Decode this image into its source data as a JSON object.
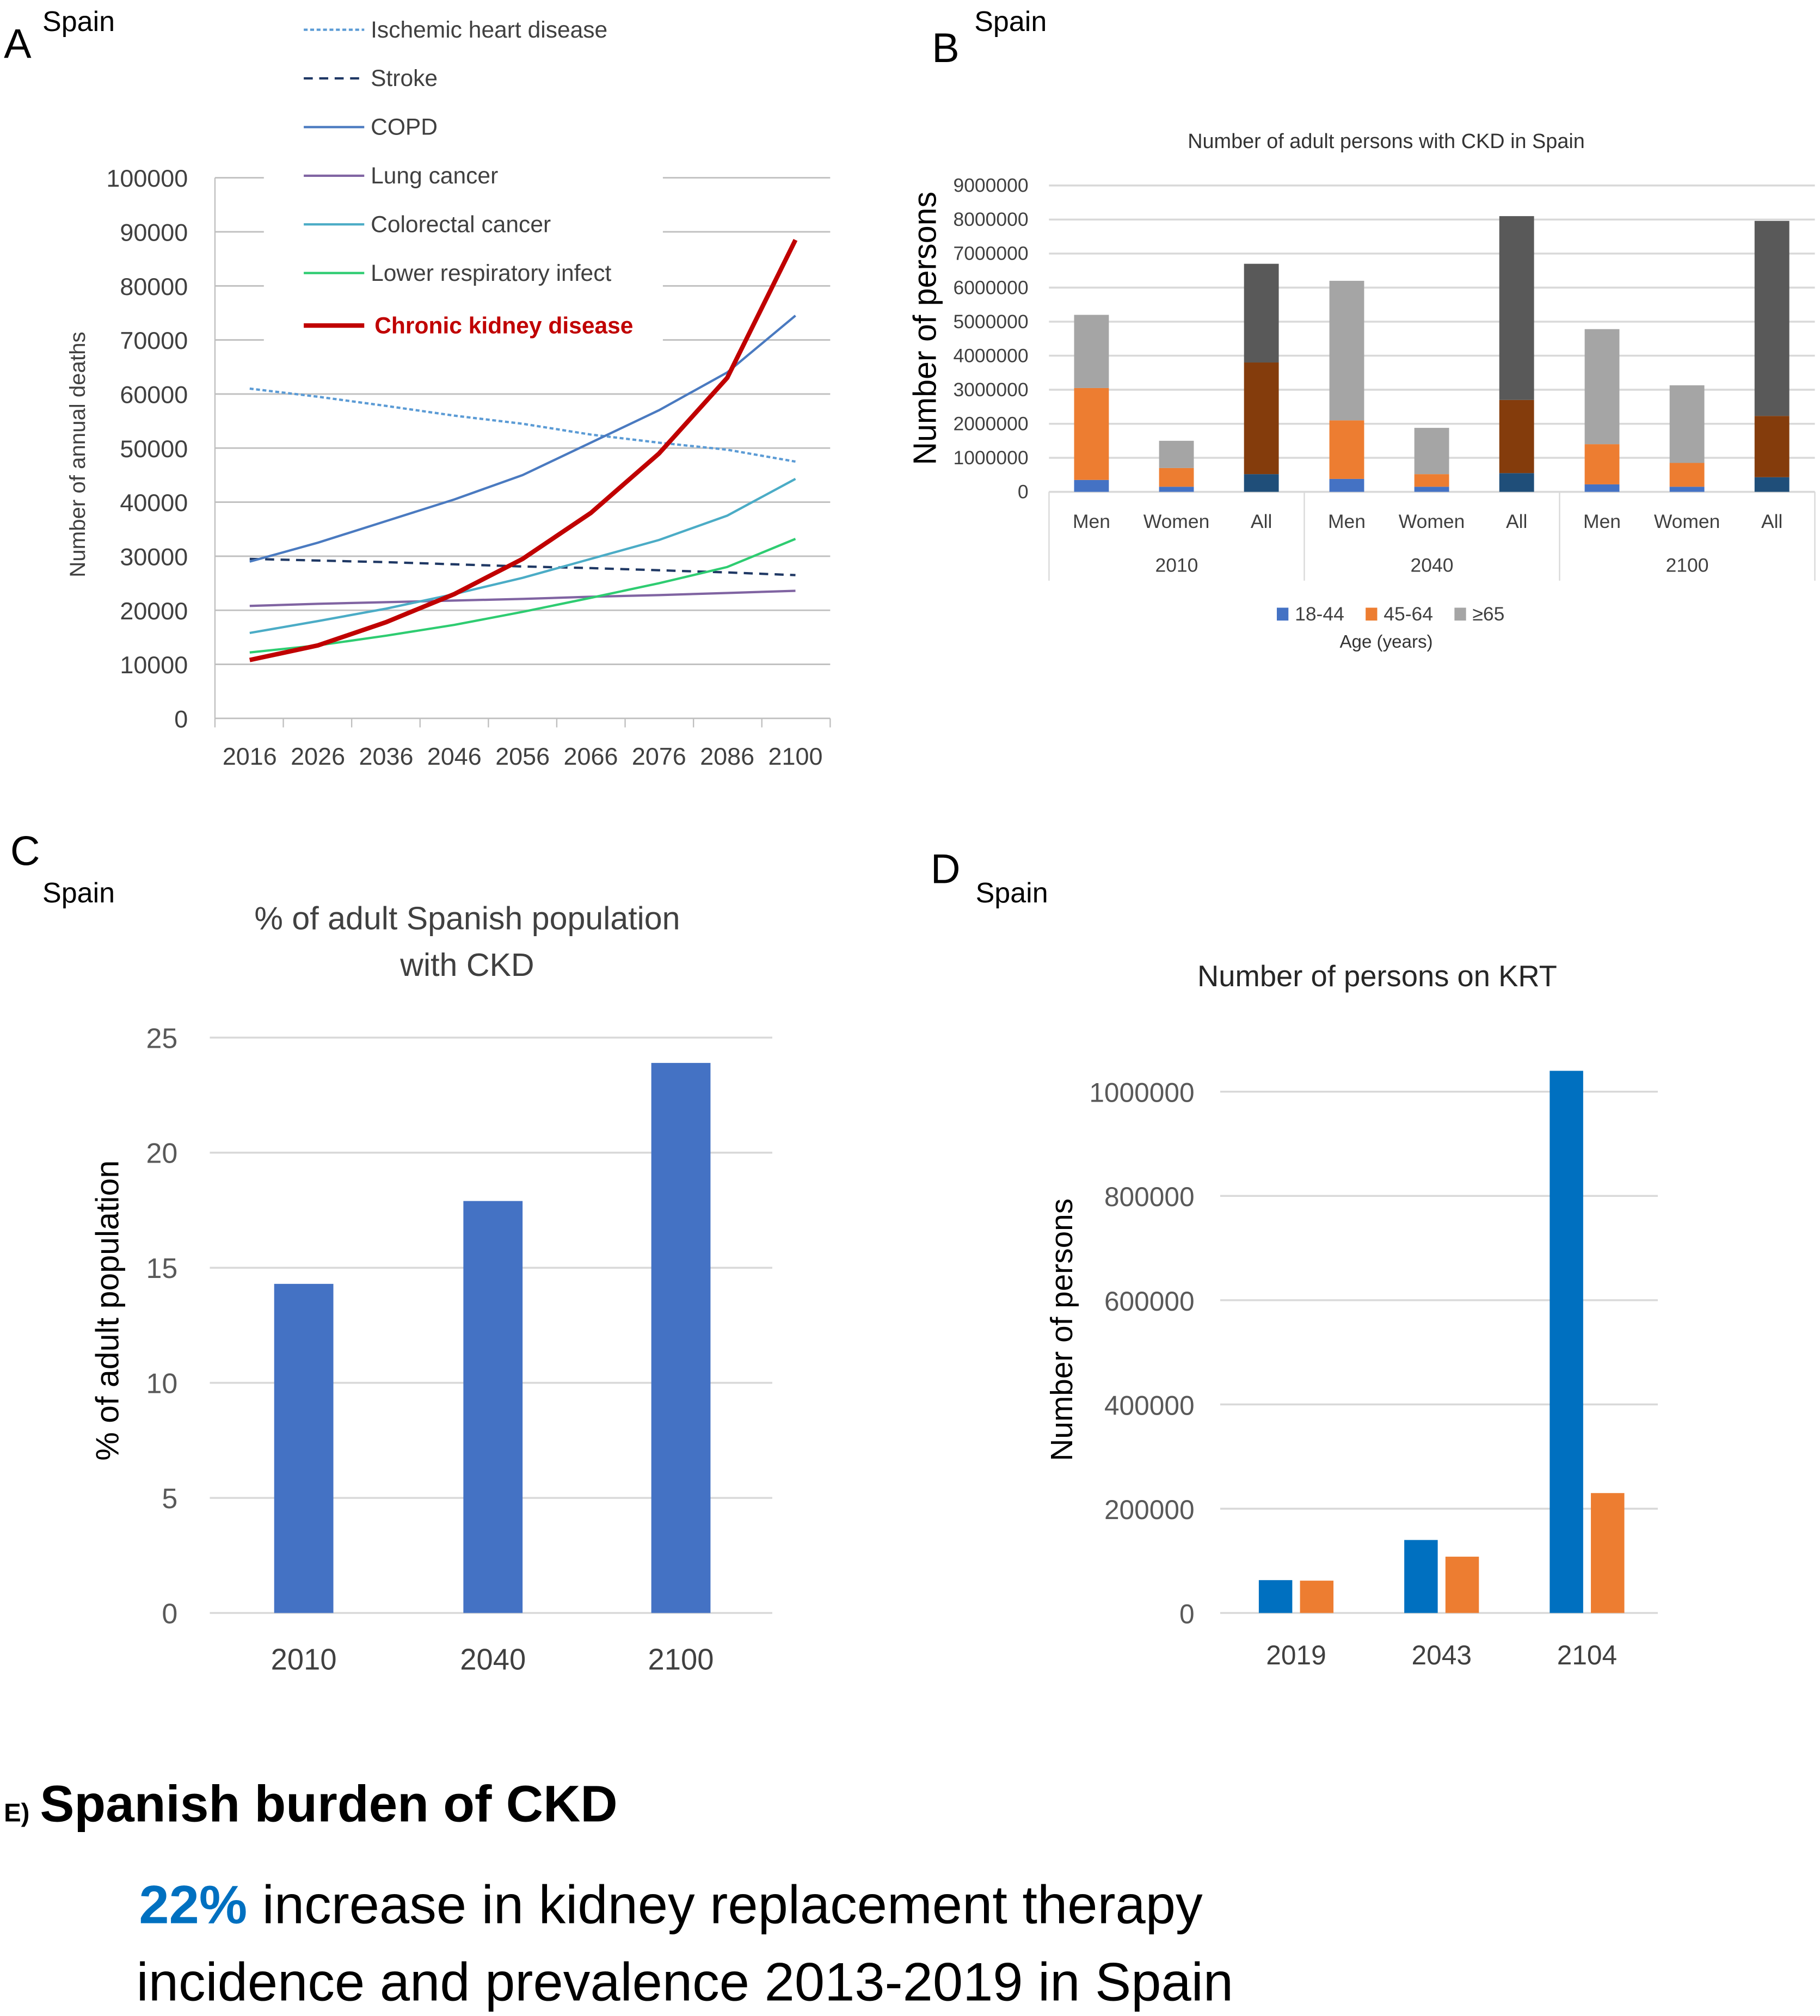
{
  "chart_data": [
    {
      "panel": "A",
      "type": "line",
      "region": "Spain",
      "title": "",
      "ylabel": "Number of annual deaths",
      "xlabel": "",
      "categories": [
        "2016",
        "2026",
        "2036",
        "2046",
        "2056",
        "2066",
        "2076",
        "2086",
        "2100"
      ],
      "ylim": [
        0,
        100000
      ],
      "yticks": [
        "0",
        "10000",
        "20000",
        "30000",
        "40000",
        "50000",
        "60000",
        "70000",
        "80000",
        "90000",
        "100000"
      ],
      "legend_placement": "top",
      "grid": true,
      "series": [
        {
          "name": "Ischemic heart disease",
          "color": "#5b9bd5",
          "dash": "dotted",
          "values": [
            61000,
            59500,
            57800,
            56000,
            54500,
            52500,
            51000,
            49700,
            47500
          ]
        },
        {
          "name": "Stroke",
          "color": "#1f3864",
          "dash": "dashed",
          "values": [
            29500,
            29200,
            28900,
            28500,
            28100,
            27800,
            27400,
            27000,
            26500
          ]
        },
        {
          "name": "COPD",
          "color": "#4a7ac0",
          "dash": "solid",
          "values": [
            29000,
            32500,
            36500,
            40500,
            45000,
            51000,
            57000,
            64000,
            74500
          ]
        },
        {
          "name": "Lung cancer",
          "color": "#8064a2",
          "dash": "solid",
          "values": [
            20800,
            21200,
            21500,
            21800,
            22100,
            22500,
            22800,
            23200,
            23600
          ]
        },
        {
          "name": "Colorectal cancer",
          "color": "#4bacc6",
          "dash": "solid",
          "values": [
            15800,
            18000,
            20300,
            23000,
            26000,
            29500,
            33000,
            37500,
            44300
          ]
        },
        {
          "name": "Lower respiratory infect",
          "color": "#2ecc71",
          "dash": "solid",
          "values": [
            12200,
            13500,
            15300,
            17300,
            19700,
            22300,
            25000,
            28000,
            33200
          ]
        },
        {
          "name": "Chronic kidney disease",
          "color": "#c00000",
          "dash": "solid",
          "bold": true,
          "values": [
            10800,
            13500,
            17800,
            23000,
            29500,
            38000,
            49000,
            63000,
            88500
          ]
        }
      ]
    },
    {
      "panel": "B",
      "type": "bar",
      "stacked": true,
      "region": "Spain",
      "title": "Number of adult persons with CKD in Spain",
      "ylabel": "Number of persons",
      "xlabel": "Age (years)",
      "ylim": [
        0,
        9000000
      ],
      "yticks": [
        "0",
        "1000000",
        "2000000",
        "3000000",
        "4000000",
        "5000000",
        "6000000",
        "7000000",
        "8000000",
        "9000000"
      ],
      "groups": [
        "2010",
        "2040",
        "2100"
      ],
      "categories": [
        "Men",
        "Women",
        "All"
      ],
      "legend_placement": "bottom",
      "grid": true,
      "series": [
        {
          "name": "18-44",
          "color": "#4472c4",
          "all_color": "#1f4e79",
          "values": [
            [
              350000,
              150000,
              520000
            ],
            [
              380000,
              150000,
              550000
            ],
            [
              220000,
              150000,
              430000
            ]
          ]
        },
        {
          "name": "45-64",
          "color": "#ed7d31",
          "all_color": "#843c0c",
          "values": [
            [
              2700000,
              550000,
              3280000
            ],
            [
              1720000,
              370000,
              2150000
            ],
            [
              1180000,
              700000,
              1800000
            ]
          ]
        },
        {
          "name": "≥65",
          "color": "#a5a5a5",
          "all_color": "#595959",
          "values": [
            [
              2150000,
              800000,
              2900000
            ],
            [
              4100000,
              1360000,
              5400000
            ],
            [
              3380000,
              2280000,
              5730000
            ]
          ]
        }
      ]
    },
    {
      "panel": "C",
      "type": "bar",
      "region": "Spain",
      "title": "% of adult Spanish population with CKD",
      "title_lines": [
        "% of adult Spanish population",
        "with CKD"
      ],
      "ylabel": "% of adult population",
      "categories": [
        "2010",
        "2040",
        "2100"
      ],
      "values": [
        14.3,
        17.9,
        23.9
      ],
      "ylim": [
        0,
        25
      ],
      "yticks": [
        "0",
        "5",
        "10",
        "15",
        "20",
        "25"
      ],
      "color": "#4472c4",
      "grid": true
    },
    {
      "panel": "D",
      "type": "bar",
      "region": "Spain",
      "title": "Number of persons on KRT",
      "ylabel": "Number of persons",
      "categories": [
        "2019",
        "2043",
        "2104"
      ],
      "ylim": [
        0,
        1000000
      ],
      "yticks": [
        "0",
        "200000",
        "400000",
        "600000",
        "800000",
        "1000000"
      ],
      "grid": true,
      "series": [
        {
          "color": "#0070c0",
          "values": [
            63000,
            140000,
            1040000
          ]
        },
        {
          "color": "#ed7d31",
          "values": [
            62000,
            108000,
            230000
          ]
        }
      ]
    }
  ],
  "panel_e": {
    "letter": "E)",
    "title": "Spanish burden of CKD",
    "highlight": "22%",
    "highlight_color": "#0070c0",
    "line1": " increase in kidney replacement therapy",
    "line2": "incidence and prevalence 2013-2019 in Spain"
  }
}
